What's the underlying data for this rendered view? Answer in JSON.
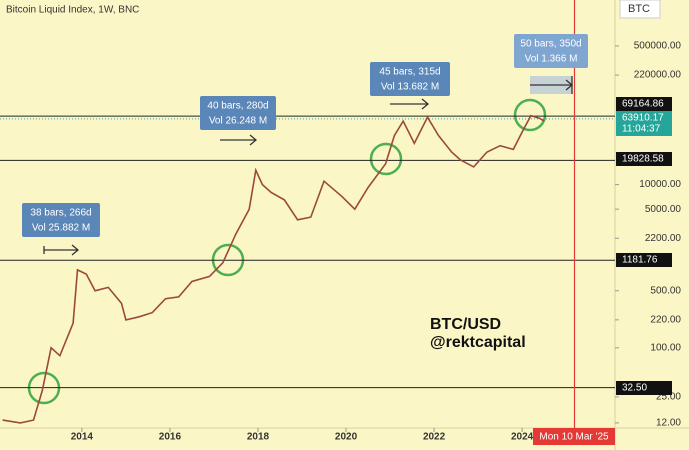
{
  "chart_data": {
    "type": "line",
    "title": "Bitcoin Liquid Index, 1W, BNC",
    "symbol": "BTC",
    "log_scale": true,
    "series": [
      {
        "name": "BTC/USD",
        "color": "#9a4a3c",
        "x": [
          2012.2,
          2012.6,
          2012.9,
          2013.1,
          2013.3,
          2013.5,
          2013.8,
          2013.9,
          2014.1,
          2014.3,
          2014.6,
          2014.9,
          2015.0,
          2015.3,
          2015.6,
          2015.9,
          2016.2,
          2016.5,
          2016.9,
          2017.2,
          2017.5,
          2017.8,
          2017.95,
          2018.1,
          2018.3,
          2018.6,
          2018.9,
          2019.2,
          2019.5,
          2019.9,
          2020.2,
          2020.5,
          2020.9,
          2021.1,
          2021.3,
          2021.55,
          2021.85,
          2022.1,
          2022.4,
          2022.6,
          2022.9,
          2023.2,
          2023.5,
          2023.8,
          2024.0,
          2024.2,
          2024.4,
          2024.5
        ],
        "values": [
          13,
          12,
          13,
          30,
          100,
          80,
          200,
          900,
          800,
          500,
          550,
          350,
          220,
          240,
          270,
          400,
          420,
          650,
          750,
          1100,
          2500,
          5000,
          15000,
          10000,
          8000,
          6500,
          3700,
          4000,
          11000,
          7200,
          5000,
          9200,
          18000,
          40000,
          60000,
          32000,
          67000,
          40000,
          25000,
          20000,
          16500,
          25000,
          30000,
          27000,
          44000,
          70000,
          65000,
          60000
        ]
      }
    ],
    "watermark_author": "@rektcapital",
    "xlim": [
      2012.14,
      2026.11
    ],
    "xticks": [
      2014,
      2016,
      2018,
      2020,
      2022,
      2024
    ],
    "ylim": [
      10.4,
      1830000
    ],
    "yticks": [
      {
        "value": 500000,
        "label": "500000.00"
      },
      {
        "value": 220000,
        "label": "220000.00"
      },
      {
        "value": 10000,
        "label": "10000.00"
      },
      {
        "value": 5000,
        "label": "5000.00"
      },
      {
        "value": 2200,
        "label": "2200.00"
      },
      {
        "value": 500,
        "label": "500.00"
      },
      {
        "value": 220,
        "label": "220.00"
      },
      {
        "value": 100,
        "label": "100.00"
      },
      {
        "value": 25,
        "label": "25.00"
      },
      {
        "value": 12,
        "label": "12.00"
      }
    ],
    "levels": [
      69164.86,
      19828.58,
      1181.76,
      {
        "value": 32.5,
        "label": "32.50"
      }
    ],
    "current_price": 63910.17,
    "countdown": "11:04:37",
    "marker": {
      "x": 2025.19,
      "label": "Mon 10 Mar '25"
    },
    "annotations": [
      {
        "bars": "38 bars, 266d",
        "volume": "Vol 25.882 M"
      },
      {
        "bars": "40 bars, 280d",
        "volume": "Vol 26.248 M"
      },
      {
        "bars": "45 bars, 315d",
        "volume": "Vol 13.682 M"
      },
      {
        "bars": "50 bars, 350d",
        "volume": "Vol 1.366 M"
      }
    ]
  }
}
